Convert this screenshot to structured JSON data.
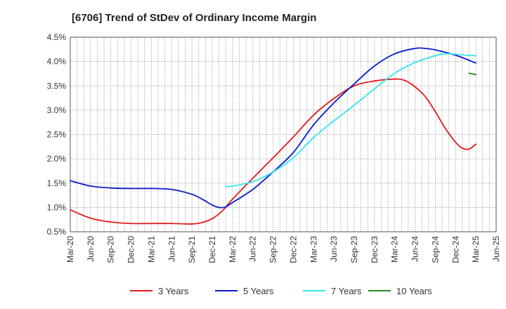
{
  "chart_data": {
    "type": "line",
    "title": "[6706]  Trend of StDev of Ordinary Income Margin",
    "xlabel": "",
    "ylabel": "",
    "ylim": [
      0.5,
      4.5
    ],
    "yticks": [
      "0.5%",
      "1.0%",
      "1.5%",
      "2.0%",
      "2.5%",
      "3.0%",
      "3.5%",
      "4.0%",
      "4.5%"
    ],
    "xticks": [
      "Mar-20",
      "Jun-20",
      "Sep-20",
      "Dec-20",
      "Mar-21",
      "Jun-21",
      "Sep-21",
      "Dec-21",
      "Mar-22",
      "Jun-22",
      "Sep-22",
      "Dec-22",
      "Mar-23",
      "Jun-23",
      "Sep-23",
      "Dec-23",
      "Mar-24",
      "Jun-24",
      "Sep-24",
      "Dec-24",
      "Mar-25",
      "Jun-25"
    ],
    "grid": true,
    "legend_position": "bottom",
    "series": [
      {
        "name": "3 Years",
        "color": "#e31a1c",
        "points": [
          [
            0,
            0.95
          ],
          [
            1,
            0.78
          ],
          [
            2,
            0.7
          ],
          [
            3,
            0.67
          ],
          [
            4,
            0.67
          ],
          [
            5,
            0.67
          ],
          [
            6,
            0.66
          ],
          [
            6.5,
            0.69
          ],
          [
            7,
            0.77
          ],
          [
            7.5,
            0.93
          ],
          [
            8,
            1.17
          ],
          [
            9,
            1.6
          ],
          [
            10,
            2.02
          ],
          [
            11,
            2.45
          ],
          [
            12,
            2.9
          ],
          [
            13,
            3.24
          ],
          [
            14,
            3.5
          ],
          [
            15,
            3.6
          ],
          [
            16,
            3.64
          ],
          [
            16.5,
            3.61
          ],
          [
            17,
            3.48
          ],
          [
            17.5,
            3.28
          ],
          [
            18,
            2.97
          ],
          [
            18.5,
            2.62
          ],
          [
            19,
            2.34
          ],
          [
            19.33,
            2.22
          ],
          [
            19.66,
            2.2
          ],
          [
            20,
            2.3
          ]
        ]
      },
      {
        "name": "5 Years",
        "color": "#0a1ccc",
        "points": [
          [
            0,
            1.55
          ],
          [
            1,
            1.44
          ],
          [
            2,
            1.4
          ],
          [
            3,
            1.39
          ],
          [
            4,
            1.39
          ],
          [
            5,
            1.37
          ],
          [
            6,
            1.27
          ],
          [
            6.5,
            1.17
          ],
          [
            7,
            1.05
          ],
          [
            7.33,
            1.0
          ],
          [
            7.66,
            1.01
          ],
          [
            8,
            1.1
          ],
          [
            9,
            1.37
          ],
          [
            10,
            1.73
          ],
          [
            11,
            2.13
          ],
          [
            12,
            2.7
          ],
          [
            13,
            3.15
          ],
          [
            14,
            3.54
          ],
          [
            15,
            3.91
          ],
          [
            16,
            4.16
          ],
          [
            17,
            4.27
          ],
          [
            17.5,
            4.27
          ],
          [
            18,
            4.24
          ],
          [
            19,
            4.13
          ],
          [
            20,
            3.97
          ]
        ]
      },
      {
        "name": "7 Years",
        "color": "#33e6ee",
        "points": [
          [
            7.66,
            1.43
          ],
          [
            8,
            1.44
          ],
          [
            9,
            1.53
          ],
          [
            10,
            1.73
          ],
          [
            11,
            2.02
          ],
          [
            12,
            2.44
          ],
          [
            13,
            2.78
          ],
          [
            14,
            3.1
          ],
          [
            15,
            3.44
          ],
          [
            16,
            3.76
          ],
          [
            17,
            3.98
          ],
          [
            18,
            4.12
          ],
          [
            18.5,
            4.16
          ],
          [
            19,
            4.15
          ],
          [
            19.5,
            4.13
          ],
          [
            20,
            4.12
          ]
        ]
      },
      {
        "name": "10 Years",
        "color": "#228b22",
        "points": [
          [
            19.66,
            3.76
          ],
          [
            20,
            3.73
          ]
        ]
      }
    ]
  }
}
